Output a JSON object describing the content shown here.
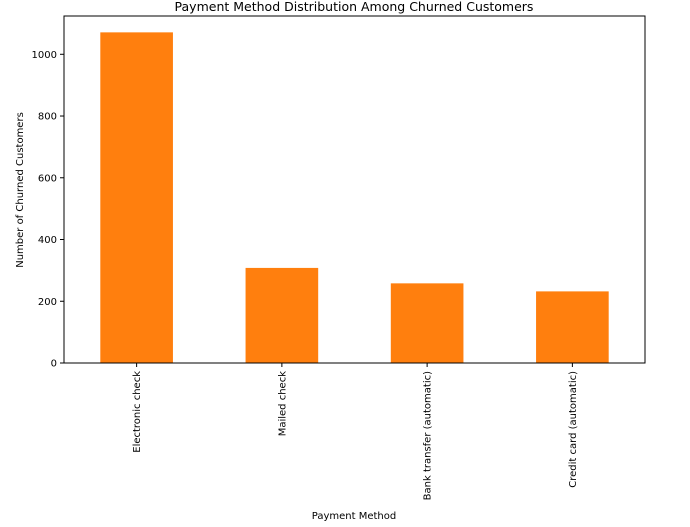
{
  "chart_data": {
    "type": "bar",
    "title": "Payment Method Distribution Among Churned Customers",
    "xlabel": "Payment Method",
    "ylabel": "Number of Churned Customers",
    "categories": [
      "Electronic check",
      "Mailed check",
      "Bank transfer (automatic)",
      "Credit card (automatic)"
    ],
    "values": [
      1071,
      308,
      258,
      232
    ],
    "ylim": [
      0,
      1124
    ],
    "yticks": [
      0,
      200,
      400,
      600,
      800,
      1000
    ],
    "bar_color": "#ff7f0e",
    "grid": false,
    "legend": false
  }
}
